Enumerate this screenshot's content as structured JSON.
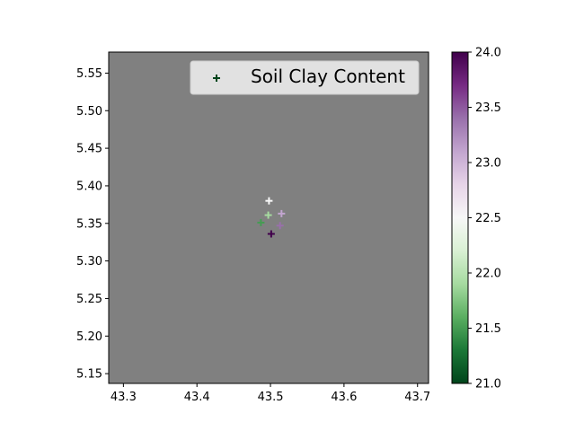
{
  "chart_data": {
    "type": "scatter",
    "marker": "+",
    "background_color": "#808080",
    "colormap": "PRGn",
    "legend": {
      "label": "Soil Clay Content",
      "location": "upper right",
      "marker_color": "#00441b"
    },
    "xlim": [
      43.28,
      43.715
    ],
    "ylim": [
      5.137,
      5.578
    ],
    "x_ticks": [
      43.3,
      43.4,
      43.5,
      43.6,
      43.7
    ],
    "x_tick_labels": [
      "43.3",
      "43.4",
      "43.5",
      "43.6",
      "43.7"
    ],
    "y_ticks": [
      5.15,
      5.2,
      5.25,
      5.3,
      5.35,
      5.4,
      5.45,
      5.5,
      5.55
    ],
    "y_tick_labels": [
      "5.15",
      "5.20",
      "5.25",
      "5.30",
      "5.35",
      "5.40",
      "5.45",
      "5.50",
      "5.55"
    ],
    "colorbar": {
      "range": [
        21.0,
        24.0
      ],
      "ticks": [
        21.0,
        21.5,
        22.0,
        22.5,
        23.0,
        23.5,
        24.0
      ],
      "tick_labels": [
        "21.0",
        "21.5",
        "22.0",
        "22.5",
        "23.0",
        "23.5",
        "24.0"
      ]
    },
    "points": [
      {
        "x": 43.498,
        "y": 5.38,
        "value": 22.5
      },
      {
        "x": 43.497,
        "y": 5.361,
        "value": 21.9
      },
      {
        "x": 43.515,
        "y": 5.363,
        "value": 23.1
      },
      {
        "x": 43.487,
        "y": 5.351,
        "value": 21.5
      },
      {
        "x": 43.513,
        "y": 5.347,
        "value": 23.4
      },
      {
        "x": 43.501,
        "y": 5.336,
        "value": 24.0
      }
    ]
  }
}
